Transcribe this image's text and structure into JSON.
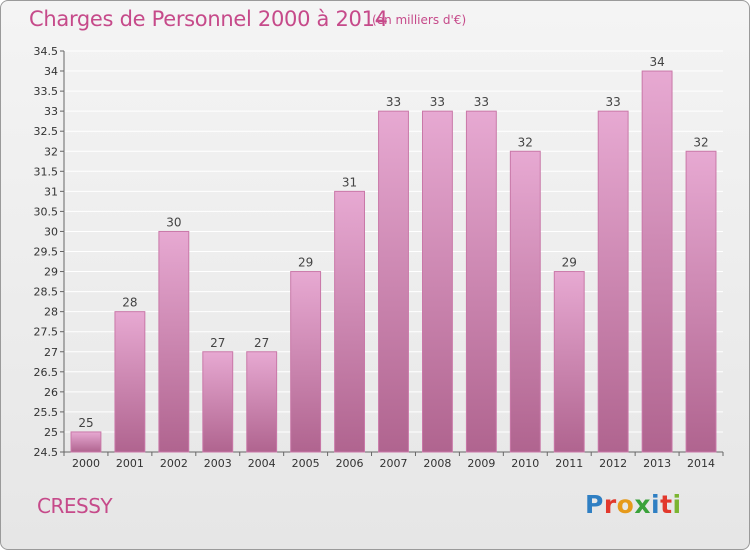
{
  "header": {
    "title": "Charges de Personnel 2000 à 2014",
    "subtitle": "(en milliers d'€)"
  },
  "footer": {
    "place": "CRESSY",
    "logo": {
      "p": "P",
      "r": "r",
      "o": "o",
      "x": "x",
      "i1": "i",
      "t": "t",
      "i2": "i"
    }
  },
  "colors": {
    "bar_top": "#e7a9d2",
    "bar_bottom": "#b0648f",
    "bar_edge": "#c978a8",
    "title": "#c64a8a",
    "grid": "#ffffff"
  },
  "chart_data": {
    "type": "bar",
    "title": "Charges de Personnel 2000 à 2014",
    "subtitle": "(en milliers d'€)",
    "xlabel": "",
    "ylabel": "",
    "categories": [
      "2000",
      "2001",
      "2002",
      "2003",
      "2004",
      "2005",
      "2006",
      "2007",
      "2008",
      "2009",
      "2010",
      "2011",
      "2012",
      "2013",
      "2014"
    ],
    "values": [
      25,
      28,
      30,
      27,
      27,
      29,
      31,
      33,
      33,
      33,
      32,
      29,
      33,
      34,
      32
    ],
    "ylim": [
      24.5,
      34.5
    ],
    "yticks": [
      "24.5",
      "25",
      "25.5",
      "26",
      "26.5",
      "27",
      "27.5",
      "28",
      "28.5",
      "29",
      "29.5",
      "30",
      "30.5",
      "31",
      "31.5",
      "32",
      "32.5",
      "33",
      "33.5",
      "34",
      "34.5"
    ],
    "grid": true
  }
}
